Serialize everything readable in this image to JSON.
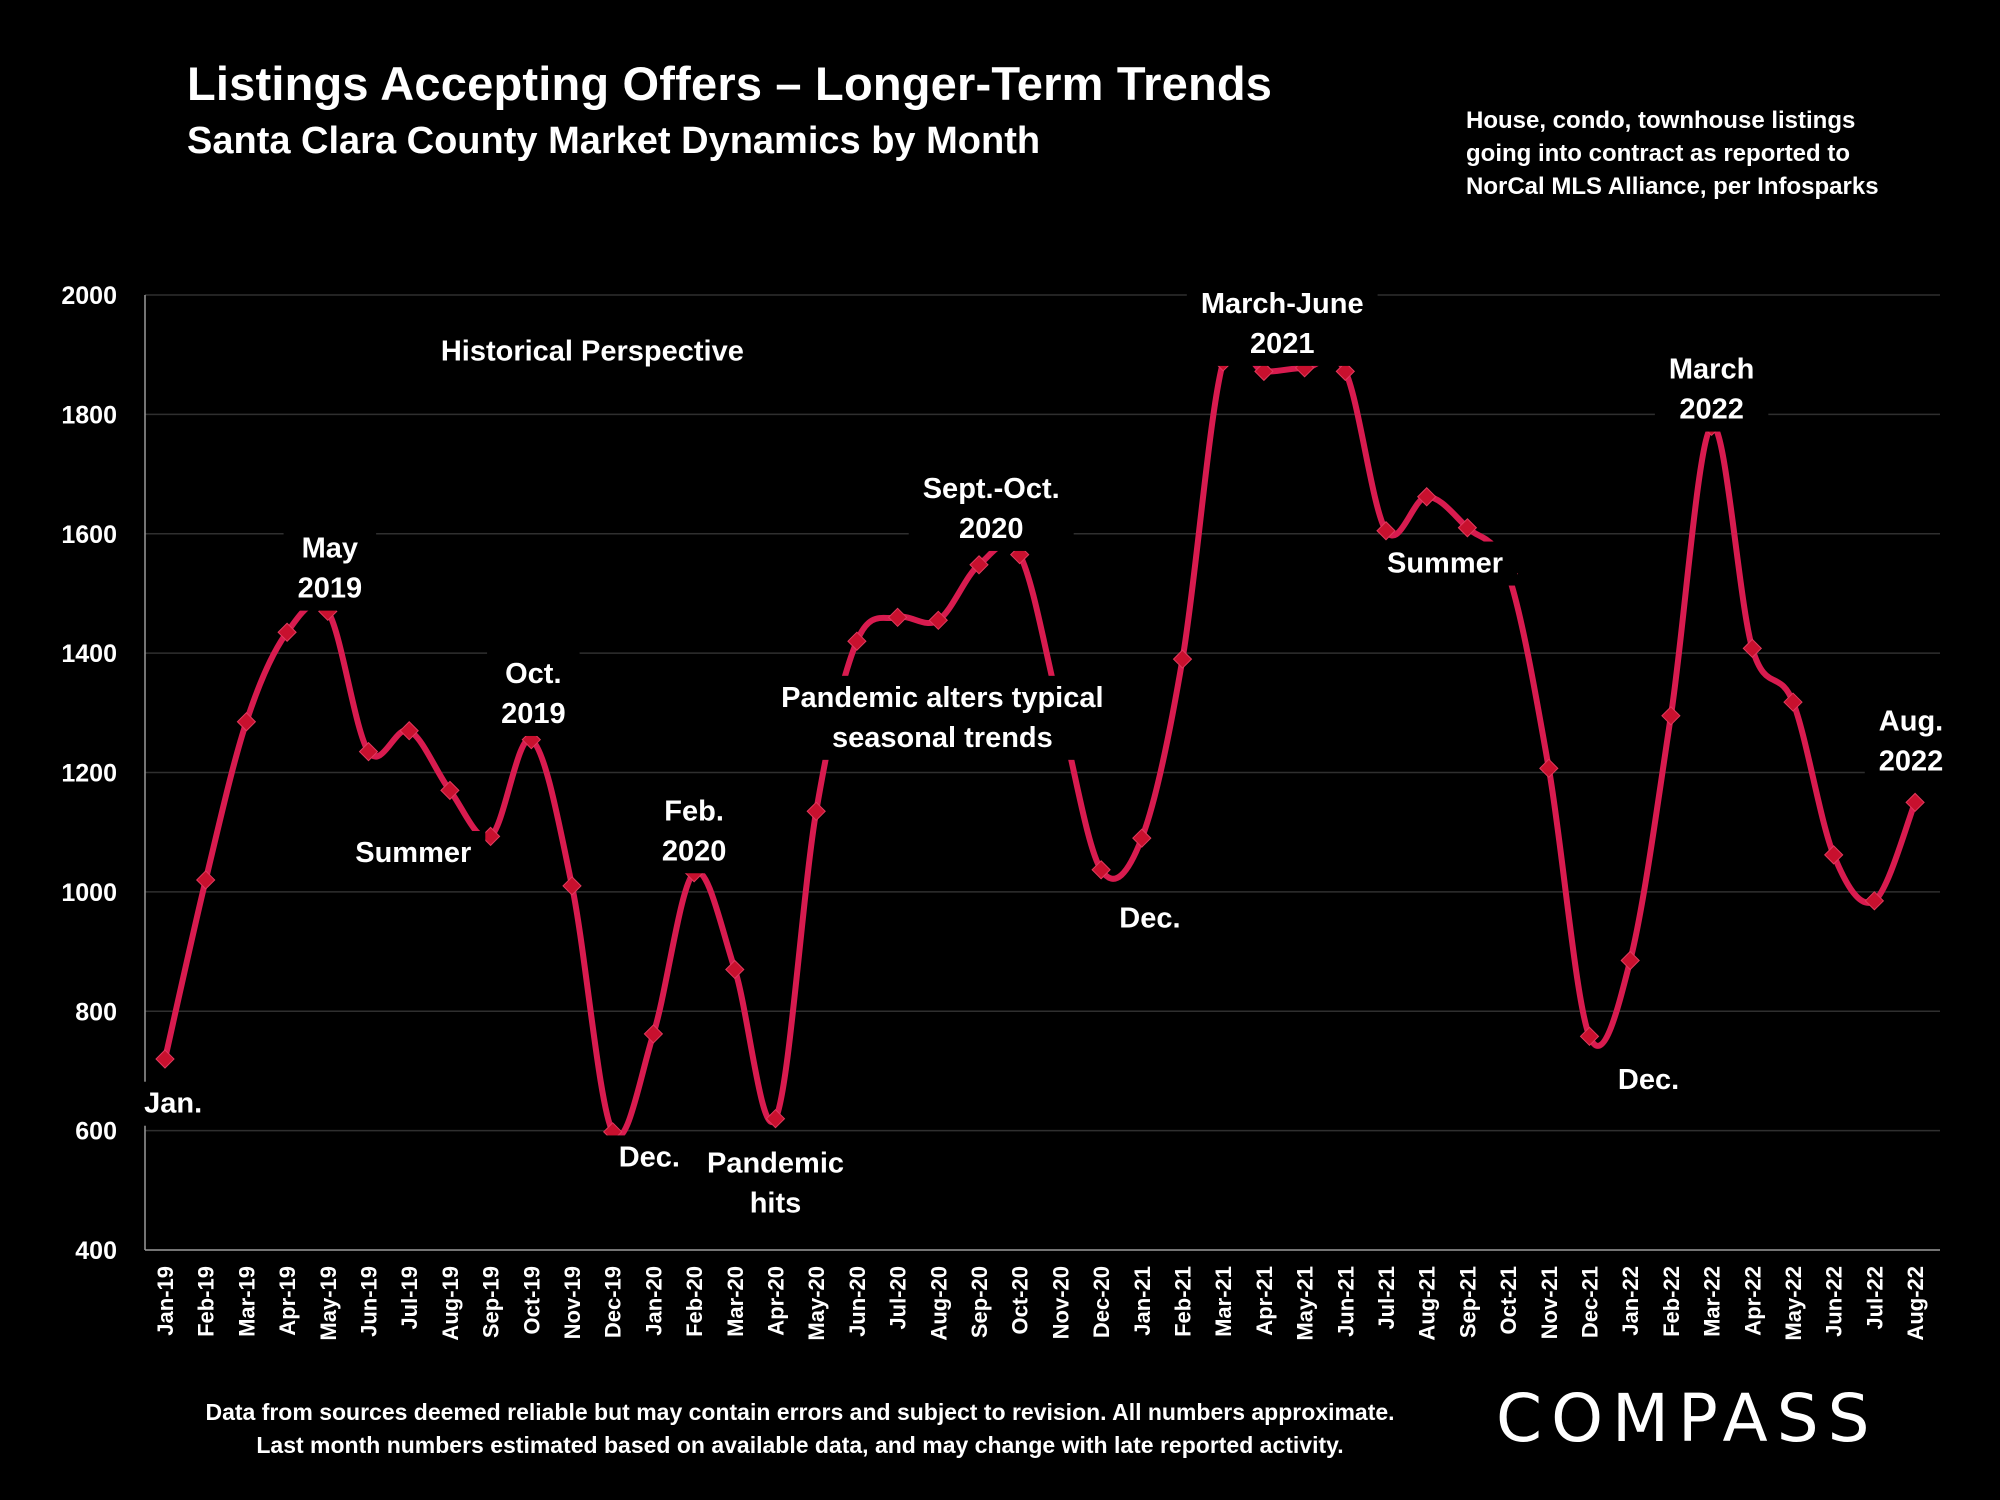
{
  "header": {
    "title": "Listings Accepting Offers – Longer-Term Trends",
    "subtitle": "Santa Clara County Market Dynamics by Month",
    "source_lines": [
      "House, condo, townhouse listings",
      "going into contract as reported to",
      "NorCal MLS Alliance, per Infosparks"
    ]
  },
  "footer": {
    "lines": [
      "Data from sources deemed reliable but may contain errors and subject to revision. All numbers approximate.",
      "Last month numbers estimated based on available data, and may change with late reported activity."
    ]
  },
  "brand": {
    "logo_text": "COMPASS"
  },
  "colors": {
    "line": "#d81b4f",
    "marker": "#c8102e",
    "background": "#000000",
    "grid": "#2f2f2f"
  },
  "chart_data": {
    "type": "line",
    "title": "Listings Accepting Offers – Longer-Term Trends",
    "subtitle": "Santa Clara County Market Dynamics by Month",
    "xlabel": "",
    "ylabel": "",
    "ylim": [
      400,
      2000
    ],
    "yticks": [
      400,
      600,
      800,
      1000,
      1200,
      1400,
      1600,
      1800,
      2000
    ],
    "grid": true,
    "legend": "none",
    "categories": [
      "Jan-19",
      "Feb-19",
      "Mar-19",
      "Apr-19",
      "May-19",
      "Jun-19",
      "Jul-19",
      "Aug-19",
      "Sep-19",
      "Oct-19",
      "Nov-19",
      "Dec-19",
      "Jan-20",
      "Feb-20",
      "Mar-20",
      "Apr-20",
      "May-20",
      "Jun-20",
      "Jul-20",
      "Aug-20",
      "Sep-20",
      "Oct-20",
      "Nov-20",
      "Dec-20",
      "Jan-21",
      "Feb-21",
      "Mar-21",
      "Apr-21",
      "May-21",
      "Jun-21",
      "Jul-21",
      "Aug-21",
      "Sep-21",
      "Oct-21",
      "Nov-21",
      "Dec-21",
      "Jan-22",
      "Feb-22",
      "Mar-22",
      "Apr-22",
      "May-22",
      "Jun-22",
      "Jul-22",
      "Aug-22"
    ],
    "series": [
      {
        "values": [
          720,
          1020,
          1285,
          1435,
          1470,
          1235,
          1270,
          1170,
          1093,
          1255,
          1010,
          598,
          762,
          1032,
          870,
          620,
          1135,
          1420,
          1460,
          1455,
          1548,
          1565,
          1300,
          1037,
          1090,
          1390,
          1888,
          1872,
          1878,
          1872,
          1605,
          1662,
          1610,
          1533,
          1207,
          758,
          885,
          1295,
          1780,
          1408,
          1318,
          1062,
          985,
          1150
        ]
      }
    ],
    "annotations": [
      {
        "lines": [
          "Historical Perspective"
        ],
        "index": 10.5,
        "value": 1890
      },
      {
        "lines": [
          "Jan."
        ],
        "index": 0.2,
        "value": 630
      },
      {
        "lines": [
          "May",
          "2019"
        ],
        "index": 4.05,
        "value": 1560
      },
      {
        "lines": [
          "Summer"
        ],
        "index": 6.1,
        "value": 1050
      },
      {
        "lines": [
          "Oct.",
          "2019"
        ],
        "index": 9.05,
        "value": 1350
      },
      {
        "lines": [
          "Dec."
        ],
        "index": 11.9,
        "value": 540
      },
      {
        "lines": [
          "Feb.",
          "2020"
        ],
        "index": 13.0,
        "value": 1120
      },
      {
        "lines": [
          "Pandemic",
          "hits"
        ],
        "index": 15.0,
        "value": 530
      },
      {
        "lines": [
          "Pandemic alters typical",
          "seasonal trends"
        ],
        "index": 19.1,
        "value": 1310
      },
      {
        "lines": [
          "Sept.-Oct.",
          "2020"
        ],
        "index": 20.3,
        "value": 1660
      },
      {
        "lines": [
          "Dec."
        ],
        "index": 24.2,
        "value": 940
      },
      {
        "lines": [
          "March-June",
          "2021"
        ],
        "index": 27.45,
        "value": 1970
      },
      {
        "lines": [
          "Summer"
        ],
        "index": 31.45,
        "value": 1535
      },
      {
        "lines": [
          "Dec."
        ],
        "index": 36.45,
        "value": 670
      },
      {
        "lines": [
          "March",
          "2022"
        ],
        "index": 38.0,
        "value": 1860
      },
      {
        "lines": [
          "Aug.",
          "2022"
        ],
        "index": 42.9,
        "value": 1270
      }
    ]
  }
}
